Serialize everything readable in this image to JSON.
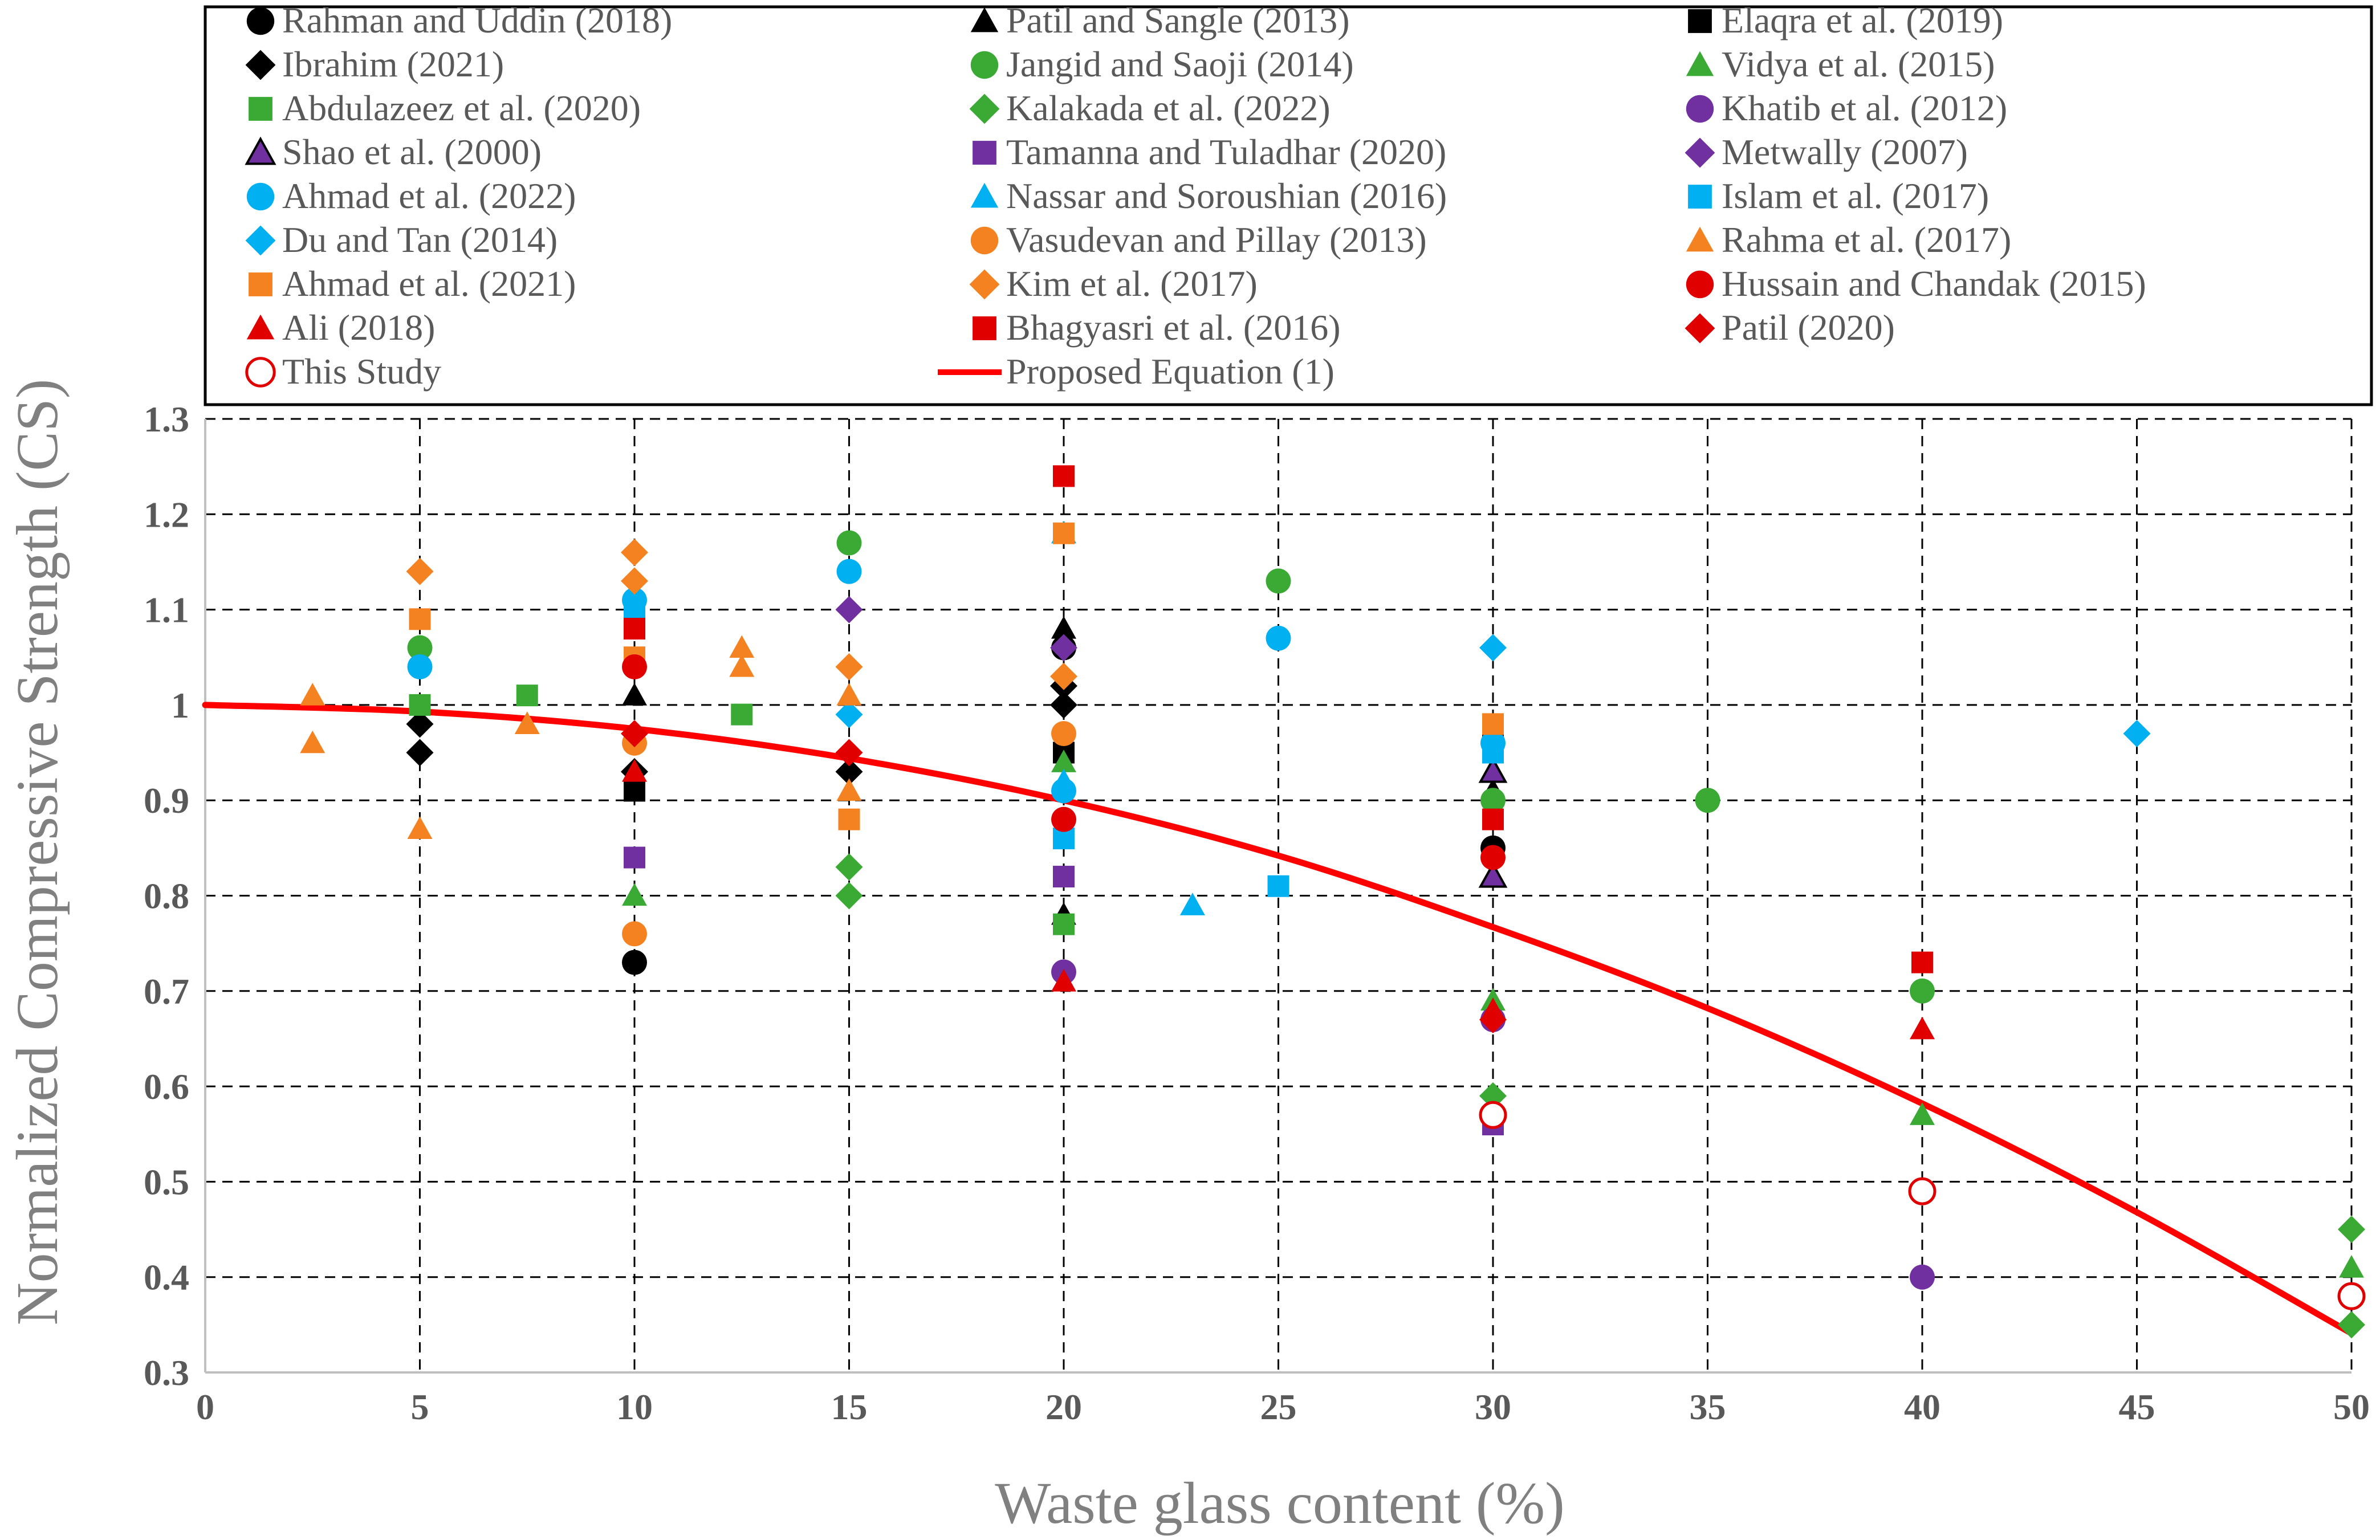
{
  "chart_data": {
    "type": "scatter",
    "xlabel": "Waste glass content (%)",
    "ylabel": "Normalized Compressive Strength (CS)",
    "xlim": [
      0,
      50
    ],
    "ylim": [
      0.3,
      1.3
    ],
    "xticks": [
      0,
      5,
      10,
      15,
      20,
      25,
      30,
      35,
      40,
      45,
      50
    ],
    "yticks": [
      0.3,
      0.4,
      0.5,
      0.6,
      0.7,
      0.8,
      0.9,
      1,
      1.1,
      1.2,
      1.3
    ],
    "xtick_labels": [
      "0",
      "5",
      "10",
      "15",
      "20",
      "25",
      "30",
      "35",
      "40",
      "45",
      "50"
    ],
    "ytick_labels": [
      "0.3",
      "0.4",
      "0.5",
      "0.6",
      "0.7",
      "0.8",
      "0.9",
      "1",
      "1.1",
      "1.2",
      "1.3"
    ],
    "grid": true,
    "legend_position": "top",
    "colors": {
      "black": "#000000",
      "green": "#3aaa35",
      "purple": "#7030a0",
      "cyan": "#00b0f0",
      "orange": "#f58220",
      "red": "#e00000",
      "line": "#ff0000"
    },
    "series": [
      {
        "name": "Rahman and Uddin (2018)",
        "marker": "circle",
        "color": "#000000",
        "points": [
          [
            10,
            0.73
          ],
          [
            20,
            1.06
          ],
          [
            30,
            0.85
          ]
        ]
      },
      {
        "name": "Patil and Sangle (2013)",
        "marker": "triangle",
        "color": "#000000",
        "points": [
          [
            10,
            1.01
          ],
          [
            20,
            0.78
          ],
          [
            20,
            1.08
          ],
          [
            30,
            0.91
          ]
        ]
      },
      {
        "name": "Elaqra et al. (2019)",
        "marker": "square",
        "color": "#000000",
        "points": [
          [
            10,
            0.91
          ],
          [
            20,
            0.95
          ],
          [
            30,
            0.96
          ]
        ]
      },
      {
        "name": "Ibrahim (2021)",
        "marker": "diamond",
        "color": "#000000",
        "points": [
          [
            5,
            0.95
          ],
          [
            5,
            0.98
          ],
          [
            10,
            0.93
          ],
          [
            15,
            0.93
          ],
          [
            20,
            1.0
          ],
          [
            20,
            1.02
          ]
        ]
      },
      {
        "name": "Jangid and Saoji (2014)",
        "marker": "circle",
        "color": "#3aaa35",
        "points": [
          [
            5,
            1.06
          ],
          [
            15,
            1.17
          ],
          [
            25,
            1.13
          ],
          [
            30,
            0.9
          ],
          [
            35,
            0.9
          ],
          [
            40,
            0.7
          ]
        ]
      },
      {
        "name": "Vidya et al. (2015)",
        "marker": "triangle",
        "color": "#3aaa35",
        "points": [
          [
            10,
            0.8
          ],
          [
            20,
            0.94
          ],
          [
            30,
            0.69
          ],
          [
            40,
            0.57
          ],
          [
            50,
            0.41
          ]
        ]
      },
      {
        "name": "Abdulazeez et al. (2020)",
        "marker": "square",
        "color": "#3aaa35",
        "points": [
          [
            5,
            1.0
          ],
          [
            7.5,
            1.01
          ],
          [
            12.5,
            0.99
          ],
          [
            20,
            0.77
          ]
        ]
      },
      {
        "name": "Kalakada et al. (2022)",
        "marker": "diamond",
        "color": "#3aaa35",
        "points": [
          [
            15,
            0.8
          ],
          [
            15,
            0.83
          ],
          [
            30,
            0.59
          ],
          [
            50,
            0.45
          ],
          [
            50,
            0.35
          ]
        ]
      },
      {
        "name": "Khatib et al. (2012)",
        "marker": "circle",
        "color": "#7030a0",
        "points": [
          [
            20,
            0.72
          ],
          [
            30,
            0.67
          ],
          [
            40,
            0.4
          ]
        ]
      },
      {
        "name": "Shao et al. (2000)",
        "marker": "triangle-open",
        "color": "#7030a0",
        "points": [
          [
            30,
            0.82
          ],
          [
            30,
            0.93
          ]
        ]
      },
      {
        "name": "Tamanna and Tuladhar (2020)",
        "marker": "square",
        "color": "#7030a0",
        "points": [
          [
            10,
            0.84
          ],
          [
            20,
            0.82
          ],
          [
            30,
            0.56
          ]
        ]
      },
      {
        "name": "Metwally (2007)",
        "marker": "diamond",
        "color": "#7030a0",
        "points": [
          [
            15,
            1.1
          ],
          [
            20,
            1.06
          ]
        ]
      },
      {
        "name": "Ahmad et al. (2022)",
        "marker": "circle",
        "color": "#00b0f0",
        "points": [
          [
            5,
            1.04
          ],
          [
            10,
            1.11
          ],
          [
            15,
            1.14
          ],
          [
            20,
            0.91
          ],
          [
            25,
            1.07
          ],
          [
            30,
            0.96
          ]
        ]
      },
      {
        "name": "Nassar and Soroushian (2016)",
        "marker": "triangle",
        "color": "#00b0f0",
        "points": [
          [
            20,
            1.18
          ],
          [
            20,
            0.92
          ],
          [
            23,
            0.79
          ]
        ]
      },
      {
        "name": "Islam et al. (2017)",
        "marker": "square",
        "color": "#00b0f0",
        "points": [
          [
            10,
            1.1
          ],
          [
            20,
            0.86
          ],
          [
            25,
            0.81
          ],
          [
            30,
            0.95
          ]
        ]
      },
      {
        "name": "Du and Tan (2014)",
        "marker": "diamond",
        "color": "#00b0f0",
        "points": [
          [
            15,
            0.99
          ],
          [
            30,
            1.06
          ],
          [
            45,
            0.97
          ]
        ]
      },
      {
        "name": "Vasudevan and  Pillay (2013)",
        "marker": "circle",
        "color": "#f58220",
        "points": [
          [
            10,
            0.76
          ],
          [
            10,
            0.96
          ],
          [
            20,
            0.97
          ]
        ]
      },
      {
        "name": "Rahma et al. (2017)",
        "marker": "triangle",
        "color": "#f58220",
        "points": [
          [
            2.5,
            1.01
          ],
          [
            2.5,
            0.96
          ],
          [
            5,
            0.87
          ],
          [
            7.5,
            0.98
          ],
          [
            12.5,
            1.06
          ],
          [
            12.5,
            1.04
          ],
          [
            15,
            1.01
          ],
          [
            15,
            0.91
          ]
        ]
      },
      {
        "name": "Ahmad et al. (2021)",
        "marker": "square",
        "color": "#f58220",
        "points": [
          [
            5,
            1.09
          ],
          [
            10,
            1.05
          ],
          [
            15,
            0.88
          ],
          [
            20,
            1.18
          ],
          [
            30,
            0.98
          ]
        ]
      },
      {
        "name": "Kim et al. (2017)",
        "marker": "diamond",
        "color": "#f58220",
        "points": [
          [
            5,
            1.14
          ],
          [
            10,
            1.16
          ],
          [
            10,
            1.13
          ],
          [
            15,
            1.04
          ],
          [
            20,
            1.03
          ]
        ]
      },
      {
        "name": "Hussain and Chandak (2015)",
        "marker": "circle",
        "color": "#e00000",
        "points": [
          [
            10,
            1.04
          ],
          [
            20,
            0.88
          ],
          [
            30,
            0.84
          ]
        ]
      },
      {
        "name": "Ali (2018)",
        "marker": "triangle",
        "color": "#e00000",
        "points": [
          [
            10,
            0.93
          ],
          [
            20,
            0.71
          ],
          [
            30,
            0.68
          ],
          [
            40,
            0.66
          ]
        ]
      },
      {
        "name": "Bhagyasri et al. (2016)",
        "marker": "square",
        "color": "#e00000",
        "points": [
          [
            10,
            1.08
          ],
          [
            20,
            1.24
          ],
          [
            30,
            0.88
          ],
          [
            40,
            0.73
          ]
        ]
      },
      {
        "name": "Patil (2020)",
        "marker": "diamond",
        "color": "#e00000",
        "points": [
          [
            10,
            0.97
          ],
          [
            15,
            0.95
          ],
          [
            30,
            0.67
          ]
        ]
      },
      {
        "name": "This Study",
        "marker": "circle-open",
        "color": "#e00000",
        "points": [
          [
            30,
            0.57
          ],
          [
            40,
            0.49
          ],
          [
            50,
            0.38
          ]
        ]
      }
    ],
    "line": {
      "name": "Proposed Equation (1)",
      "color": "#ff0000",
      "points": [
        [
          0,
          1.0
        ],
        [
          5,
          0.993
        ],
        [
          10,
          0.975
        ],
        [
          15,
          0.944
        ],
        [
          20,
          0.9
        ],
        [
          25,
          0.842
        ],
        [
          30,
          0.767
        ],
        [
          35,
          0.682
        ],
        [
          40,
          0.582
        ],
        [
          45,
          0.468
        ],
        [
          50,
          0.341
        ]
      ]
    }
  }
}
